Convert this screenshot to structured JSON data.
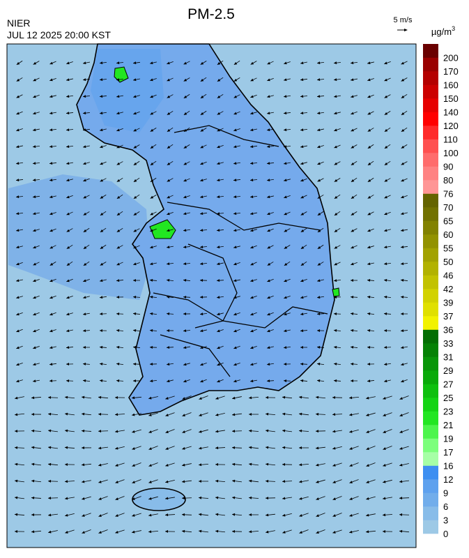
{
  "header": {
    "title": "PM-2.5",
    "agency": "NIER",
    "datetime": "JUL 12 2025 20:00 KST",
    "wind_scale": "5 m/s"
  },
  "legend": {
    "unit": "µg/m",
    "unit_superscript": "3",
    "ticks": [
      0,
      3,
      6,
      9,
      12,
      16,
      17,
      19,
      21,
      23,
      25,
      27,
      29,
      31,
      33,
      36,
      37,
      39,
      42,
      46,
      50,
      55,
      60,
      65,
      70,
      76,
      80,
      90,
      100,
      110,
      120,
      140,
      150,
      160,
      170,
      200
    ],
    "colors": [
      "#9dc9e6",
      "#88bce9",
      "#71adeb",
      "#5ea1ee",
      "#3d8ff1",
      "#a6ffa6",
      "#7cff7c",
      "#4cf54c",
      "#22e622",
      "#14d414",
      "#0fc00f",
      "#0aaa0a",
      "#089608",
      "#058205",
      "#036e03",
      "#f2f200",
      "#e0e000",
      "#d2d200",
      "#c2c200",
      "#b2b200",
      "#a2a200",
      "#929200",
      "#828200",
      "#727200",
      "#646400",
      "#ff9696",
      "#ff8282",
      "#ff6c6c",
      "#ff5050",
      "#ff2a2a",
      "#ff0000",
      "#e60000",
      "#cc0000",
      "#b40000",
      "#9a0000",
      "#6a0000"
    ]
  }
}
